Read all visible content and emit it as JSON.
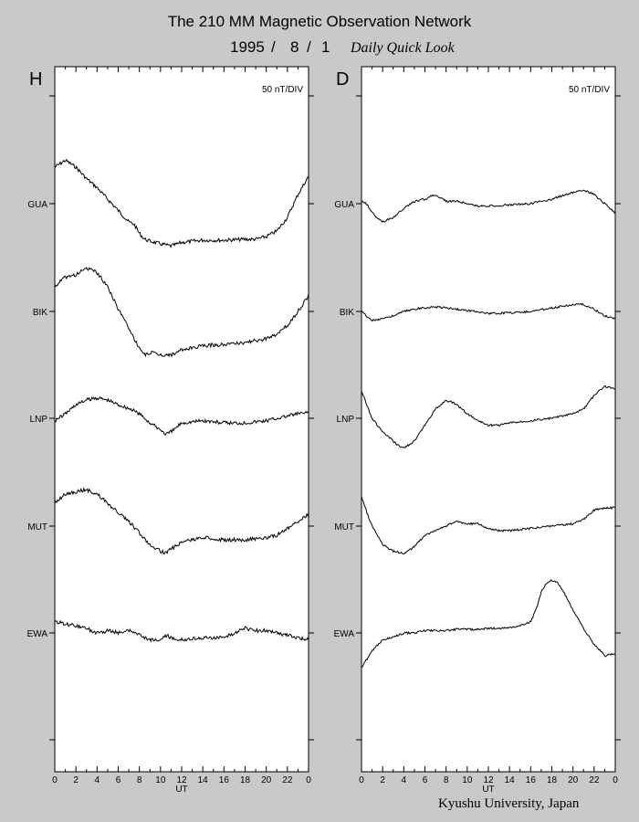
{
  "header": {
    "title": "The 210 MM Magnetic Observation Network",
    "year": "1995",
    "sep1": "/",
    "month": "8",
    "sep2": "/",
    "day": "1",
    "subtitle": "Daily Quick Look"
  },
  "footer": {
    "credit": "Kyushu University, Japan"
  },
  "colors": {
    "background": "#c9c9c9",
    "panel": "#ffffff",
    "trace": "#000000"
  },
  "chart_data": [
    {
      "type": "line",
      "panel_label": "H",
      "scale_label": "50 nT/DIV",
      "xlabel": "UT",
      "xlim": [
        0,
        24
      ],
      "x_ticks": [
        "0",
        "2",
        "4",
        "6",
        "8",
        "10",
        "12",
        "14",
        "16",
        "18",
        "20",
        "22",
        "0"
      ],
      "stations": [
        "GUA",
        "BIK",
        "LNP",
        "MUT",
        "EWA"
      ],
      "series": [
        {
          "name": "GUA",
          "x": [
            0,
            1,
            2,
            3,
            4,
            5,
            6,
            7,
            7.5,
            8,
            8.5,
            9,
            10,
            11,
            12,
            14,
            16,
            18,
            19,
            20,
            21,
            22,
            23,
            24
          ],
          "y": [
            80,
            95,
            80,
            55,
            35,
            10,
            -15,
            -40,
            -45,
            -65,
            -78,
            -82,
            -88,
            -93,
            -85,
            -80,
            -80,
            -78,
            -78,
            -72,
            -60,
            -30,
            20,
            60
          ]
        },
        {
          "name": "BIK",
          "x": [
            0,
            1,
            2,
            3,
            4,
            5,
            6,
            7,
            7.5,
            8,
            8.5,
            9,
            10,
            11,
            12,
            14,
            16,
            18,
            20,
            21,
            22,
            23,
            24
          ],
          "y": [
            55,
            75,
            80,
            95,
            85,
            55,
            5,
            -35,
            -60,
            -80,
            -95,
            -90,
            -95,
            -95,
            -85,
            -75,
            -72,
            -68,
            -60,
            -50,
            -30,
            0,
            35
          ]
        },
        {
          "name": "LNP",
          "x": [
            0,
            1,
            2,
            3,
            4,
            5,
            6,
            7,
            8,
            9,
            10,
            10.5,
            11,
            12,
            14,
            16,
            18,
            20,
            22,
            23,
            24
          ],
          "y": [
            -5,
            10,
            30,
            40,
            45,
            40,
            30,
            22,
            10,
            -10,
            -25,
            -35,
            -30,
            -10,
            -5,
            -10,
            -10,
            -5,
            5,
            10,
            12
          ]
        },
        {
          "name": "MUT",
          "x": [
            0,
            1,
            2,
            3,
            4,
            5,
            6,
            7,
            8,
            9,
            10,
            10.5,
            11,
            12,
            14,
            16,
            18,
            20,
            21,
            22,
            23,
            24
          ],
          "y": [
            50,
            70,
            75,
            80,
            70,
            50,
            30,
            10,
            -15,
            -40,
            -55,
            -60,
            -50,
            -35,
            -25,
            -30,
            -30,
            -25,
            -20,
            -5,
            10,
            25
          ]
        },
        {
          "name": "EWA",
          "x": [
            0,
            1,
            2,
            3,
            4,
            5,
            6,
            7,
            8,
            9,
            10,
            10.5,
            11,
            12,
            14,
            16,
            18,
            19,
            20,
            21,
            22,
            23,
            24
          ],
          "y": [
            25,
            20,
            15,
            10,
            0,
            5,
            0,
            5,
            -5,
            -15,
            -15,
            -5,
            -10,
            -15,
            -10,
            -10,
            10,
            5,
            5,
            0,
            -5,
            -10,
            -15
          ]
        }
      ]
    },
    {
      "type": "line",
      "panel_label": "D",
      "scale_label": "50 nT/DIV",
      "xlabel": "UT",
      "xlim": [
        0,
        24
      ],
      "x_ticks": [
        "0",
        "2",
        "4",
        "6",
        "8",
        "10",
        "12",
        "14",
        "16",
        "18",
        "20",
        "22",
        "0"
      ],
      "stations": [
        "GUA",
        "BIK",
        "LNP",
        "MUT",
        "EWA"
      ],
      "series": [
        {
          "name": "GUA",
          "x": [
            0,
            0.5,
            1,
            2,
            3,
            4,
            5,
            6,
            7,
            8,
            9,
            10,
            11,
            12,
            14,
            16,
            18,
            20,
            21,
            22,
            23,
            24
          ],
          "y": [
            5,
            0,
            -20,
            -40,
            -30,
            -10,
            5,
            10,
            20,
            5,
            5,
            0,
            -5,
            -5,
            -3,
            0,
            10,
            25,
            30,
            20,
            0,
            -20
          ]
        },
        {
          "name": "BIK",
          "x": [
            0,
            0.5,
            1,
            2,
            3,
            4,
            5,
            6,
            7,
            8,
            9,
            10,
            11,
            12,
            14,
            16,
            18,
            20,
            21,
            22,
            23,
            24
          ],
          "y": [
            0,
            -10,
            -20,
            -15,
            -10,
            0,
            5,
            8,
            10,
            8,
            5,
            2,
            0,
            -5,
            -3,
            0,
            8,
            15,
            15,
            5,
            -10,
            -15
          ]
        },
        {
          "name": "LNP",
          "x": [
            0,
            0.5,
            1,
            2,
            3,
            3.5,
            4,
            5,
            6,
            7,
            8,
            9,
            10,
            11,
            12,
            13,
            14,
            16,
            18,
            20,
            21,
            22,
            23,
            24
          ],
          "y": [
            60,
            30,
            0,
            -30,
            -50,
            -60,
            -65,
            -50,
            -15,
            20,
            40,
            30,
            10,
            -5,
            -15,
            -15,
            -10,
            -5,
            0,
            10,
            20,
            50,
            70,
            65
          ]
        },
        {
          "name": "MUT",
          "x": [
            0,
            0.5,
            1,
            2,
            3,
            4,
            5,
            6,
            7,
            8,
            9,
            10,
            11,
            12,
            13,
            14,
            16,
            18,
            20,
            21,
            22,
            23,
            24
          ],
          "y": [
            65,
            30,
            0,
            -40,
            -55,
            -60,
            -45,
            -20,
            -10,
            0,
            10,
            5,
            5,
            -5,
            -10,
            -10,
            -5,
            0,
            5,
            15,
            35,
            40,
            40
          ]
        },
        {
          "name": "EWA",
          "x": [
            0,
            1,
            2,
            3,
            4,
            5,
            6,
            7,
            8,
            9,
            10,
            11,
            12,
            13,
            14,
            15,
            16,
            16.5,
            17,
            17.5,
            18,
            18.5,
            19,
            20,
            21,
            22,
            23,
            24
          ],
          "y": [
            -75,
            -40,
            -15,
            -10,
            0,
            0,
            5,
            5,
            5,
            8,
            8,
            8,
            10,
            10,
            12,
            15,
            25,
            50,
            90,
            110,
            115,
            110,
            95,
            50,
            10,
            -25,
            -50,
            -45
          ]
        }
      ]
    }
  ]
}
